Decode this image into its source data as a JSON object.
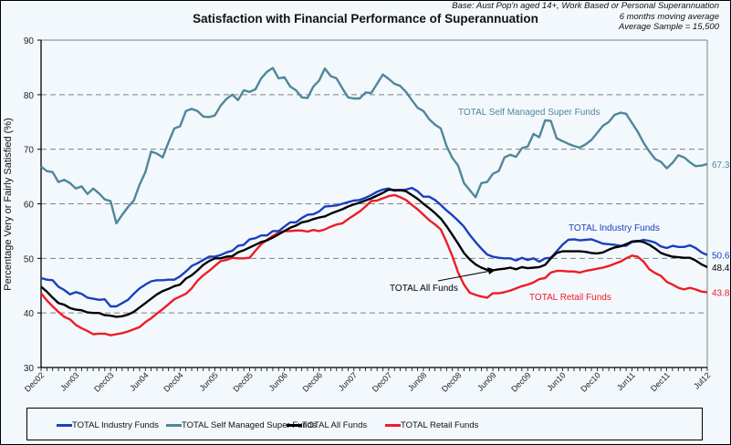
{
  "chart_data": {
    "type": "line",
    "title": "Satisfaction with Financial Performance of Superannuation",
    "notes": [
      "Base: Aust Pop'n aged 14+, Work Based or Personal Superannuation",
      "6 months moving average",
      "Average Sample = 15,500"
    ],
    "xlabel": "",
    "ylabel": "Percentage Very or Fairly Satisfied (%)",
    "ylim": [
      30,
      90
    ],
    "yticks": [
      30,
      40,
      50,
      60,
      70,
      80,
      90
    ],
    "grid": "horizontal-dashed",
    "legend_position": "bottom",
    "x_start": "Dec02",
    "x_end": "Jul12",
    "x_frequency": "monthly",
    "xtick_labels": [
      "Dec02",
      "Jun03",
      "Dec03",
      "Jun04",
      "Dec04",
      "Jun05",
      "Dec05",
      "Jun06",
      "Dec06",
      "Jun07",
      "Dec07",
      "Jun08",
      "Dec08",
      "Jun09",
      "Dec09",
      "Jun10",
      "Dec10",
      "Jun11",
      "Dec11",
      "Jul12"
    ],
    "xtick_month_index": [
      0,
      6,
      12,
      18,
      24,
      30,
      36,
      42,
      48,
      54,
      60,
      66,
      72,
      78,
      84,
      90,
      96,
      102,
      108,
      115
    ],
    "series": [
      {
        "name": "TOTAL Industry Funds",
        "color": "#1a3fbf",
        "end_label": "50.6",
        "inline_label": "TOTAL Industry Funds",
        "values": [
          46.4,
          46.1,
          46.0,
          44.8,
          44.2,
          43.4,
          43.8,
          43.5,
          42.8,
          42.6,
          42.4,
          42.5,
          41.2,
          41.2,
          41.8,
          42.4,
          43.5,
          44.5,
          45.2,
          45.8,
          46.0,
          46.0,
          46.1,
          46.1,
          46.7,
          47.6,
          48.6,
          49.1,
          49.7,
          50.3,
          50.3,
          50.6,
          51.1,
          51.4,
          52.3,
          52.5,
          53.5,
          53.7,
          54.2,
          54.2,
          55.0,
          55.0,
          55.8,
          56.6,
          56.6,
          57.4,
          58.0,
          58.1,
          58.6,
          59.5,
          59.6,
          59.7,
          60.0,
          60.3,
          60.6,
          60.7,
          61.1,
          61.6,
          62.2,
          62.6,
          62.8,
          62.4,
          62.5,
          62.6,
          62.9,
          62.3,
          61.3,
          61.3,
          60.7,
          59.8,
          58.8,
          57.9,
          56.9,
          55.8,
          54.3,
          53.0,
          51.8,
          50.7,
          50.3,
          50.1,
          50.0,
          50.0,
          49.6,
          50.1,
          49.7,
          50.0,
          49.4,
          50.0,
          50.1,
          51.3,
          52.5,
          53.4,
          53.5,
          53.3,
          53.4,
          53.5,
          53.1,
          52.7,
          52.6,
          52.5,
          52.3,
          52.3,
          53.0,
          53.1,
          53.4,
          53.2,
          52.9,
          52.2,
          51.9,
          52.3,
          52.1,
          52.1,
          52.4,
          51.9,
          51.1,
          50.6
        ]
      },
      {
        "name": "TOTAL Self Managed Super Funds",
        "color": "#4f8799",
        "end_label": "67.3",
        "inline_label": "TOTAL Self Managed Super Funds",
        "values": [
          66.8,
          66.0,
          65.8,
          64.0,
          64.4,
          63.8,
          62.8,
          63.2,
          61.8,
          62.8,
          61.9,
          60.8,
          60.5,
          56.4,
          58.0,
          59.4,
          60.6,
          63.5,
          65.8,
          69.6,
          69.2,
          68.5,
          71.3,
          73.8,
          74.2,
          77.0,
          77.4,
          77.0,
          76.0,
          75.9,
          76.2,
          78.0,
          79.2,
          80.0,
          79.0,
          80.8,
          80.5,
          81.0,
          83.0,
          84.2,
          84.9,
          83.0,
          83.2,
          81.5,
          80.8,
          79.5,
          79.4,
          81.5,
          82.6,
          84.8,
          83.4,
          83.0,
          81.2,
          79.5,
          79.3,
          79.3,
          80.4,
          80.3,
          82.0,
          83.7,
          82.9,
          82.0,
          81.6,
          80.5,
          79.0,
          77.6,
          77.0,
          75.5,
          74.5,
          73.8,
          70.6,
          68.4,
          67.0,
          63.8,
          62.5,
          61.2,
          63.8,
          64.0,
          65.5,
          66.0,
          68.5,
          69.0,
          68.6,
          70.2,
          70.5,
          72.8,
          72.2,
          75.3,
          75.2,
          72.0,
          71.5,
          71.0,
          70.6,
          70.3,
          70.9,
          71.7,
          73.0,
          74.3,
          75.0,
          76.3,
          76.7,
          76.5,
          74.8,
          73.2,
          71.2,
          69.6,
          68.2,
          67.7,
          66.5,
          67.5,
          68.9,
          68.5,
          67.6,
          66.9,
          67.0,
          67.3
        ]
      },
      {
        "name": "TOTAL All Funds",
        "color": "#000000",
        "end_label": "48.4",
        "inline_label": "TOTAL All Funds",
        "values": [
          44.8,
          43.9,
          42.8,
          41.8,
          41.5,
          40.9,
          40.6,
          40.5,
          40.1,
          40.0,
          40.0,
          39.6,
          39.5,
          39.3,
          39.4,
          39.7,
          40.2,
          41.0,
          41.8,
          42.6,
          43.4,
          44.0,
          44.4,
          44.9,
          45.2,
          46.3,
          46.9,
          47.8,
          48.8,
          49.5,
          50.0,
          50.0,
          50.3,
          50.4,
          51.1,
          51.5,
          52.0,
          52.5,
          53.0,
          53.3,
          53.8,
          54.4,
          55.0,
          55.6,
          56.0,
          56.6,
          56.8,
          57.2,
          57.5,
          57.7,
          58.2,
          58.6,
          59.0,
          59.5,
          59.9,
          60.2,
          60.6,
          61.0,
          61.5,
          62.0,
          62.6,
          62.5,
          62.5,
          62.3,
          61.6,
          60.9,
          60.0,
          59.2,
          58.3,
          57.3,
          55.9,
          54.3,
          52.7,
          51.0,
          49.8,
          48.9,
          48.3,
          47.9,
          47.8,
          48.0,
          48.1,
          48.3,
          48.0,
          48.4,
          48.2,
          48.3,
          48.4,
          48.8,
          50.0,
          51.0,
          51.3,
          51.3,
          51.3,
          51.3,
          51.2,
          51.0,
          50.9,
          51.1,
          51.6,
          52.0,
          52.2,
          52.6,
          53.1,
          53.2,
          53.0,
          52.5,
          51.8,
          51.0,
          50.6,
          50.3,
          50.2,
          50.1,
          50.1,
          49.6,
          48.9,
          48.4
        ]
      },
      {
        "name": "TOTAL Retail Funds",
        "color": "#ee1c25",
        "end_label": "43.8",
        "inline_label": "TOTAL Retail Funds",
        "values": [
          43.6,
          42.3,
          41.2,
          40.2,
          39.3,
          38.8,
          37.8,
          37.2,
          36.7,
          36.1,
          36.2,
          36.2,
          35.9,
          36.1,
          36.3,
          36.6,
          37.0,
          37.4,
          38.3,
          39.0,
          39.9,
          40.7,
          41.6,
          42.5,
          43.0,
          43.5,
          44.5,
          45.9,
          46.9,
          47.7,
          48.6,
          49.5,
          49.7,
          50.1,
          50.0,
          50.0,
          50.1,
          51.4,
          52.6,
          53.4,
          54.1,
          54.7,
          55.0,
          55.0,
          55.1,
          55.1,
          54.9,
          55.2,
          55.0,
          55.3,
          55.8,
          56.2,
          56.4,
          57.2,
          57.9,
          58.6,
          59.5,
          60.5,
          60.6,
          61.0,
          61.4,
          61.6,
          61.2,
          60.7,
          59.8,
          59.0,
          58.0,
          57.0,
          56.2,
          55.3,
          53.0,
          50.4,
          47.4,
          45.2,
          43.7,
          43.3,
          43.0,
          42.8,
          43.6,
          43.6,
          43.8,
          44.1,
          44.5,
          44.9,
          45.2,
          45.6,
          46.2,
          46.4,
          47.4,
          47.7,
          47.7,
          47.6,
          47.6,
          47.4,
          47.7,
          47.9,
          48.1,
          48.3,
          48.6,
          49.0,
          49.4,
          50.0,
          50.5,
          50.3,
          49.4,
          48.0,
          47.3,
          46.8,
          45.7,
          45.2,
          44.6,
          44.3,
          44.6,
          44.3,
          43.9,
          43.8
        ]
      }
    ],
    "annotations": [
      {
        "text": "TOTAL Self Managed Super Funds",
        "series": "TOTAL Self Managed Super Funds"
      },
      {
        "text": "TOTAL Industry Funds",
        "series": "TOTAL Industry Funds"
      },
      {
        "text": "TOTAL All Funds",
        "series": "TOTAL All Funds",
        "arrow": true
      },
      {
        "text": "TOTAL Retail Funds",
        "series": "TOTAL Retail Funds"
      }
    ]
  },
  "legend": {
    "items": [
      {
        "label": "TOTAL Industry Funds",
        "color": "#1a3fbf"
      },
      {
        "label": "TOTAL Self Managed Super Funds",
        "color": "#4f8799"
      },
      {
        "label": "TOTAL All Funds",
        "color": "#000000"
      },
      {
        "label": "TOTAL Retail Funds",
        "color": "#ee1c25"
      }
    ]
  }
}
